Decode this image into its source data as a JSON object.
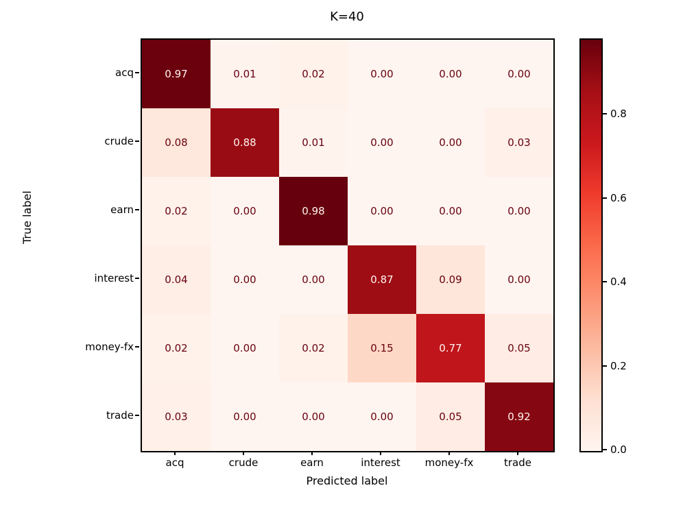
{
  "chart_data": {
    "type": "heatmap",
    "title": "K=40",
    "xlabel": "Predicted label",
    "ylabel": "True label",
    "categories": [
      "acq",
      "crude",
      "earn",
      "interest",
      "money-fx",
      "trade"
    ],
    "matrix": [
      [
        0.97,
        0.01,
        0.02,
        0.0,
        0.0,
        0.0
      ],
      [
        0.08,
        0.88,
        0.01,
        0.0,
        0.0,
        0.03
      ],
      [
        0.02,
        0.0,
        0.98,
        0.0,
        0.0,
        0.0
      ],
      [
        0.04,
        0.0,
        0.0,
        0.87,
        0.09,
        0.0
      ],
      [
        0.02,
        0.0,
        0.02,
        0.15,
        0.77,
        0.05
      ],
      [
        0.03,
        0.0,
        0.0,
        0.0,
        0.05,
        0.92
      ]
    ],
    "value_decimals": 2,
    "vmin": 0.0,
    "vmax": 0.98,
    "colormap": {
      "name": "Reds",
      "stops": [
        "#fff5f0",
        "#fee0d2",
        "#fcbba1",
        "#fc9272",
        "#fb6a4a",
        "#ef3b2c",
        "#cb181d",
        "#a50f15",
        "#67000d"
      ]
    },
    "cell_text_dark": "#67000d",
    "cell_text_light": "#fff5f0",
    "colorbar_ticks": [
      0.0,
      0.2,
      0.4,
      0.6,
      0.8
    ],
    "legend_position": "right-colorbar",
    "grid": false
  }
}
